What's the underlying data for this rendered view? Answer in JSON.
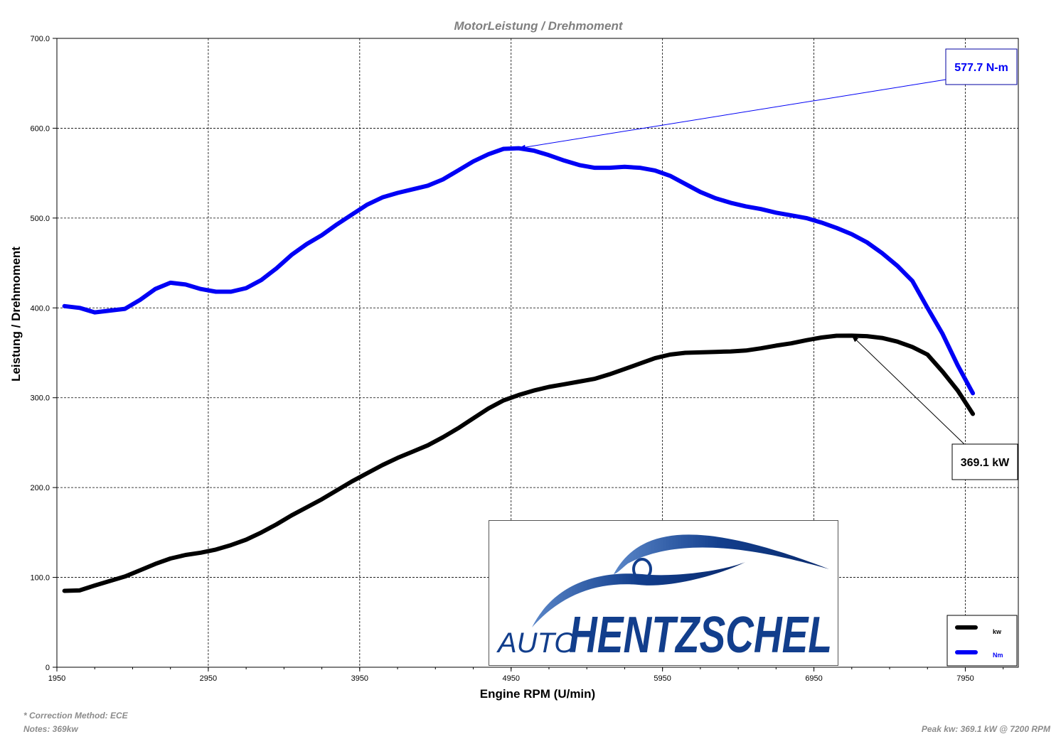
{
  "chart_data": {
    "type": "line",
    "title": "MotorLeistung / Drehmoment",
    "xlabel": "Engine RPM (U/min)",
    "ylabel": "Leistung / Drehmoment",
    "xlim": [
      1950,
      8300
    ],
    "ylim": [
      0,
      700
    ],
    "xticks": [
      1950,
      2950,
      3950,
      4950,
      5950,
      6950,
      7950
    ],
    "xtick_labels": [
      "1950",
      "2950",
      "3950",
      "4950",
      "5950",
      "6950",
      "7950"
    ],
    "yticks": [
      0,
      100,
      200,
      300,
      400,
      500,
      600,
      700
    ],
    "ytick_labels": [
      "0",
      "100.0",
      "200.0",
      "300.0",
      "400.0",
      "500.0",
      "600.0",
      "700.0"
    ],
    "grid": true,
    "legend_position": "bottom-right",
    "series": [
      {
        "name": "kw",
        "color": "#000000",
        "x": [
          2000,
          2100,
          2200,
          2300,
          2400,
          2500,
          2600,
          2700,
          2800,
          2900,
          3000,
          3100,
          3200,
          3300,
          3400,
          3500,
          3600,
          3700,
          3800,
          3900,
          4000,
          4100,
          4200,
          4300,
          4400,
          4500,
          4600,
          4700,
          4800,
          4900,
          5000,
          5100,
          5200,
          5300,
          5400,
          5500,
          5600,
          5700,
          5800,
          5900,
          6000,
          6100,
          6200,
          6300,
          6400,
          6500,
          6600,
          6700,
          6800,
          6900,
          7000,
          7100,
          7200,
          7300,
          7400,
          7500,
          7600,
          7700,
          7800,
          7900,
          8000
        ],
        "values": [
          85,
          85.5,
          91,
          96,
          101,
          108,
          115,
          121,
          125,
          127.5,
          131,
          136,
          142,
          150,
          159,
          169,
          178,
          187,
          197,
          207,
          216,
          225,
          233,
          240,
          247,
          256,
          266,
          277,
          288,
          297,
          303,
          308,
          312,
          315,
          318,
          321,
          326,
          332,
          338,
          344,
          348,
          350,
          350.5,
          351,
          351.5,
          352.5,
          355,
          358,
          360.5,
          364,
          367,
          369,
          369.1,
          368.5,
          366.5,
          362.5,
          356.5,
          348,
          329,
          308,
          282
        ]
      },
      {
        "name": "Nm",
        "color": "#0000f5",
        "x": [
          2000,
          2100,
          2200,
          2300,
          2400,
          2500,
          2600,
          2700,
          2800,
          2900,
          3000,
          3100,
          3200,
          3300,
          3400,
          3500,
          3600,
          3700,
          3800,
          3900,
          4000,
          4100,
          4200,
          4300,
          4400,
          4500,
          4600,
          4700,
          4800,
          4900,
          5000,
          5100,
          5200,
          5300,
          5400,
          5500,
          5600,
          5700,
          5800,
          5900,
          6000,
          6100,
          6200,
          6300,
          6400,
          6500,
          6600,
          6700,
          6800,
          6900,
          7000,
          7100,
          7200,
          7300,
          7400,
          7500,
          7600,
          7700,
          7800,
          7900,
          8000
        ],
        "values": [
          402,
          400,
          395,
          397,
          399,
          409,
          421,
          428,
          426,
          421,
          418,
          418,
          422,
          431,
          444,
          459,
          471,
          481,
          493,
          504,
          515,
          523,
          528,
          532,
          536,
          543,
          553,
          563,
          571,
          577,
          577.7,
          575,
          570,
          564,
          559,
          556,
          556,
          557,
          556,
          553,
          547,
          538,
          529,
          522,
          517,
          513,
          510,
          506,
          503,
          500,
          495,
          489,
          482,
          473,
          461,
          447,
          430,
          400,
          371,
          336,
          305
        ]
      }
    ],
    "annotations": [
      {
        "text": "577.7 N-m",
        "series": "Nm",
        "x": 5000,
        "y": 577.7,
        "color": "#0000f5"
      },
      {
        "text": "369.1 kW",
        "series": "kw",
        "x": 7200,
        "y": 369.1,
        "color": "#000000"
      }
    ]
  },
  "logo": {
    "word1": "AUTO",
    "word2": "HENTZSCHEL",
    "color": "#123e8c"
  },
  "footer": {
    "correction": "* Correction Method: ECE",
    "notes": "Notes: 369kw",
    "peak": "Peak kw: 369.1 kW @ 7200 RPM"
  }
}
